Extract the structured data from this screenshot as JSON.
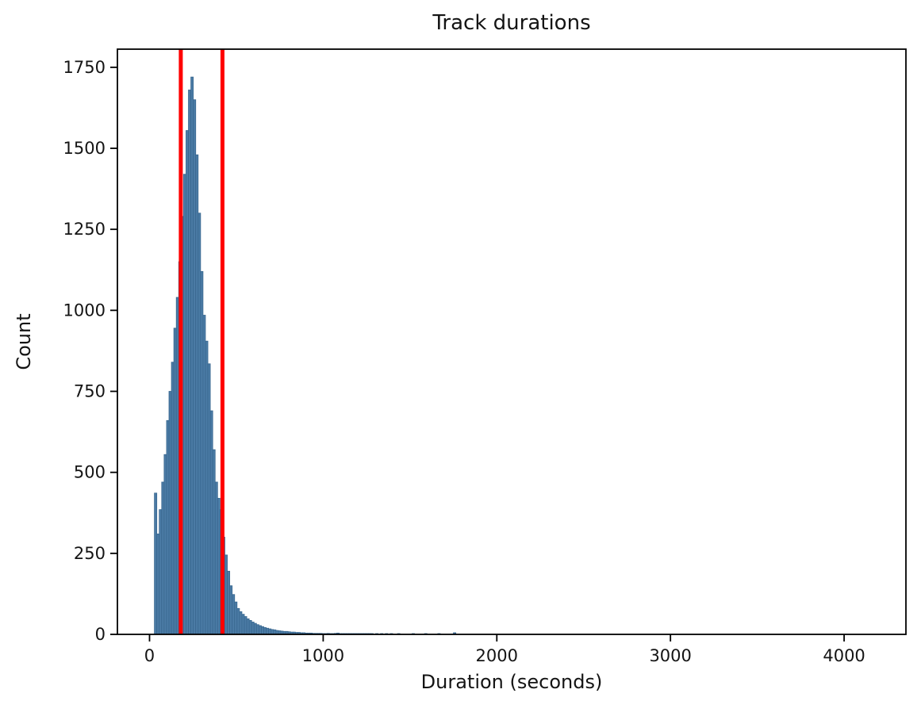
{
  "figure": {
    "title": "Track durations",
    "x_axis": {
      "label": "Duration (seconds)"
    },
    "y_axis": {
      "label": "Count"
    }
  },
  "colors": {
    "bar_fill": "#4b7ba5",
    "bar_edge": "#38678f",
    "vline": "#ff0000",
    "axis": "#000000",
    "text": "#141414",
    "background": "#ffffff"
  },
  "chart_data": {
    "type": "bar",
    "subtype": "histogram",
    "title": "Track durations",
    "xlabel": "Duration (seconds)",
    "ylabel": "Count",
    "xlim": [
      -185,
      4356
    ],
    "ylim": [
      0,
      1806
    ],
    "x_ticks": [
      0,
      1000,
      2000,
      3000,
      4000
    ],
    "y_ticks": [
      0,
      250,
      500,
      750,
      1000,
      1250,
      1500,
      1750
    ],
    "grid": false,
    "legend": false,
    "histogram": {
      "bin_start": 28,
      "bin_width": 14,
      "counts": [
        436,
        310,
        385,
        470,
        555,
        660,
        750,
        840,
        945,
        1040,
        1150,
        1290,
        1420,
        1555,
        1680,
        1720,
        1650,
        1480,
        1300,
        1120,
        985,
        905,
        835,
        690,
        570,
        470,
        420,
        385,
        300,
        245,
        195,
        150,
        123,
        100,
        80,
        70,
        62,
        55,
        48,
        43,
        38,
        34,
        30,
        27,
        24,
        21,
        19,
        17,
        15,
        14,
        12,
        11,
        10,
        9,
        9,
        8,
        7,
        7,
        6,
        6,
        5,
        5,
        4,
        4,
        4,
        3,
        3,
        3,
        3,
        2,
        2,
        3,
        2,
        2,
        3,
        4,
        2,
        2,
        1,
        2,
        1,
        1,
        2,
        1,
        1,
        1,
        1,
        1,
        1,
        1,
        0,
        1,
        0,
        1,
        0,
        1,
        0,
        1,
        0,
        0,
        1
      ]
    },
    "extra_bars": [
      {
        "x": 1512,
        "count": 1
      },
      {
        "x": 1584,
        "count": 1
      },
      {
        "x": 1660,
        "count": 1
      },
      {
        "x": 1750,
        "count": 5
      }
    ],
    "vlines": [
      {
        "x": 180,
        "color": "#ff0000",
        "name": "vline-lower-threshold"
      },
      {
        "x": 420,
        "color": "#ff0000",
        "name": "vline-upper-threshold"
      }
    ]
  }
}
